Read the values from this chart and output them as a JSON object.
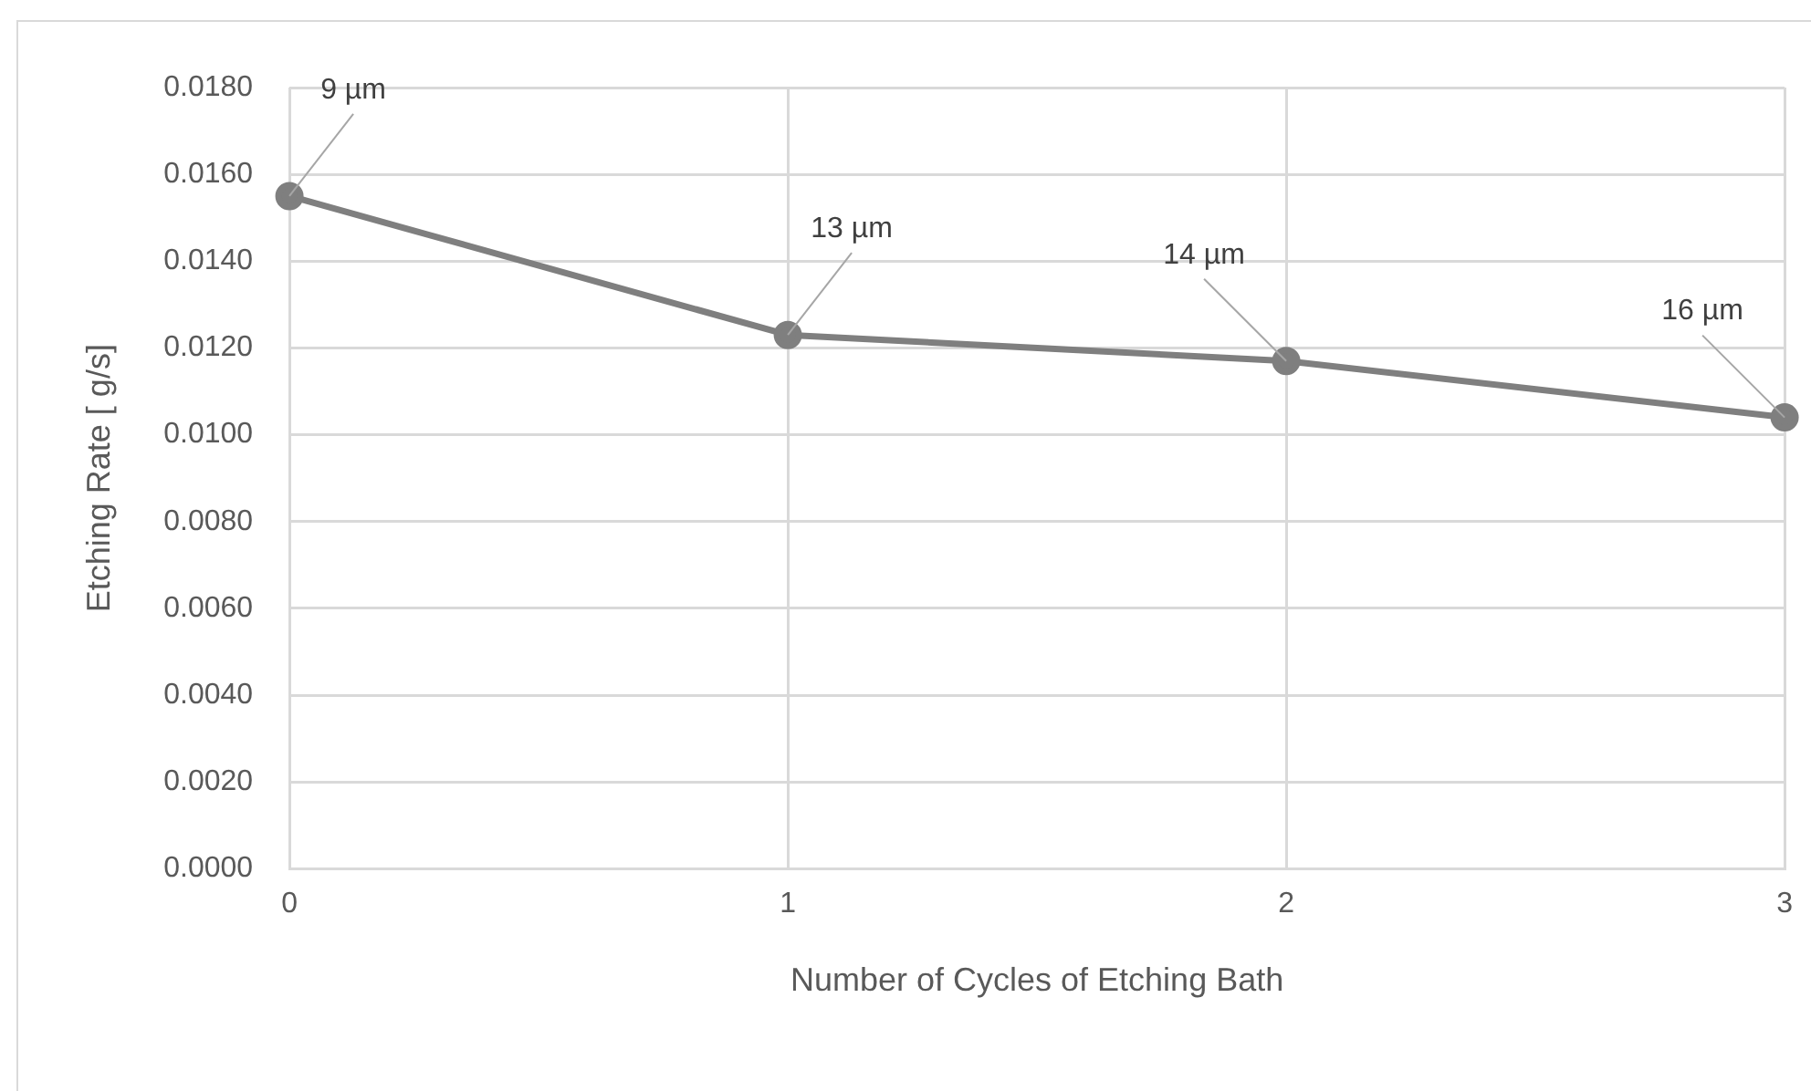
{
  "chart_data": {
    "type": "line",
    "xlabel": "Number of Cycles of Etching Bath",
    "ylabel": "Etching Rate [ g/s]",
    "x": [
      0,
      1,
      2,
      3
    ],
    "series": [
      {
        "color": "#7f7f7f",
        "values": [
          0.0155,
          0.0123,
          0.0117,
          0.0104
        ]
      }
    ],
    "xlim": [
      0,
      3
    ],
    "xticks": [
      0,
      1,
      2,
      3
    ],
    "ylim": [
      0,
      0.018
    ],
    "yticks": [
      {
        "value": 0,
        "label": "0.0000"
      },
      {
        "value": 0.002,
        "label": "0.0020"
      },
      {
        "value": 0.004,
        "label": "0.0040"
      },
      {
        "value": 0.006,
        "label": "0.0060"
      },
      {
        "value": 0.008,
        "label": "0.0080"
      },
      {
        "value": 0.01,
        "label": "0.0100"
      },
      {
        "value": 0.012,
        "label": "0.0120"
      },
      {
        "value": 0.014,
        "label": "0.0140"
      },
      {
        "value": 0.016,
        "label": "0.0160"
      },
      {
        "value": 0.018,
        "label": "0.0180"
      }
    ],
    "annotations": [
      {
        "text": "9 µm",
        "x": 0,
        "y": 0.0155
      },
      {
        "text": "13 µm",
        "x": 1,
        "y": 0.0123
      },
      {
        "text": "14 µm",
        "x": 2,
        "y": 0.0117
      },
      {
        "text": "16 µm",
        "x": 3,
        "y": 0.0104
      }
    ],
    "grid": true,
    "marker": "circle",
    "line_style": "solid",
    "legend": false
  }
}
